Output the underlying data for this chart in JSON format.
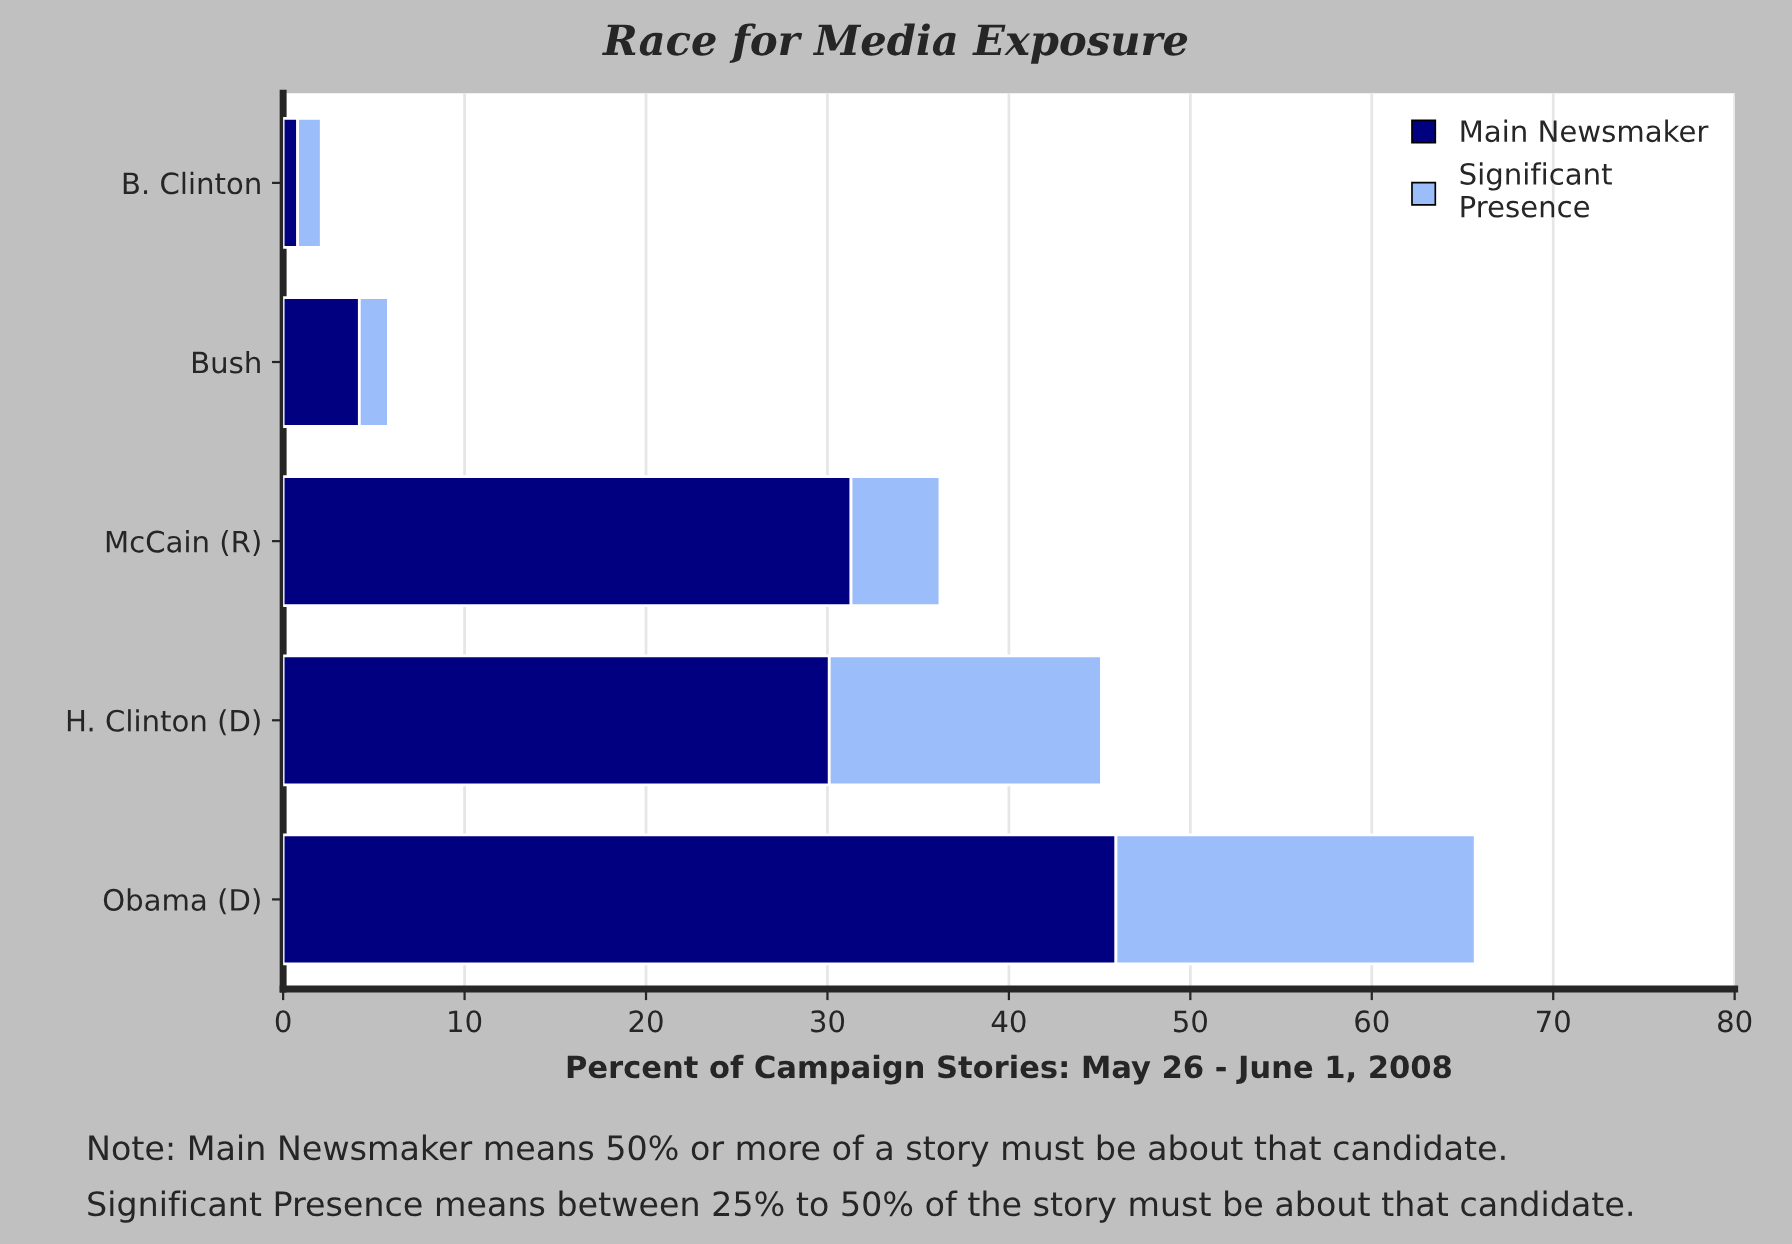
{
  "chart_data": {
    "type": "bar",
    "orientation": "horizontal",
    "stacked": true,
    "title": "Race for Media Exposure",
    "xlabel": "Percent of Campaign Stories: May 26 - June 1, 2008",
    "categories": [
      "B. Clinton",
      "Bush",
      "McCain (R)",
      "H. Clinton (D)",
      "Obama (D)"
    ],
    "series": [
      {
        "name": "Main Newsmaker",
        "color": "#000080",
        "values": [
          0.8,
          4.2,
          31.3,
          30.1,
          45.9
        ]
      },
      {
        "name": "Significant\nPresence",
        "color": "#9bbdf9",
        "values": [
          1.3,
          1.6,
          4.9,
          15.0,
          19.8
        ]
      }
    ],
    "xlim": [
      0,
      80
    ],
    "xticks": [
      0,
      10,
      20,
      30,
      40,
      50,
      60,
      70,
      80
    ],
    "grid": "x",
    "legend": "top right",
    "annotations": [
      "Note: Main Newsmaker means 50% or more of a story must be about that candidate.",
      "Significant Presence means between 25% to 50% of the story must be about that candidate."
    ]
  }
}
